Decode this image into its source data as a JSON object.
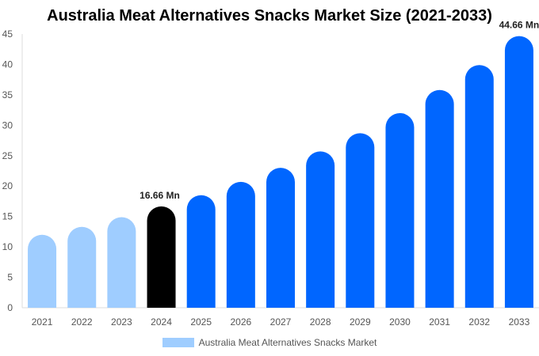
{
  "chart_data": {
    "type": "bar",
    "title": "Australia Meat Alternatives Snacks Market Size (2021-2033)",
    "categories": [
      "2021",
      "2022",
      "2023",
      "2024",
      "2025",
      "2026",
      "2027",
      "2028",
      "2029",
      "2030",
      "2031",
      "2032",
      "2033"
    ],
    "series": [
      {
        "name": "Australia Meat Alternatives Snacks Market",
        "values": [
          12.0,
          13.3,
          14.9,
          16.66,
          18.5,
          20.7,
          23.0,
          25.7,
          28.7,
          32.0,
          35.8,
          39.9,
          44.66
        ]
      }
    ],
    "data_labels": {
      "2024": "16.66 Mn",
      "2033": "44.66 Mn"
    },
    "xlabel": "",
    "ylabel": "",
    "ylim": [
      0,
      45
    ],
    "yticks": [
      0,
      5,
      10,
      15,
      20,
      25,
      30,
      35,
      40,
      45
    ],
    "grid": false,
    "legend": "bottom",
    "colors": {
      "historical": "#9fcdff",
      "base_year": "#000000",
      "forecast": "#0066ff"
    }
  }
}
